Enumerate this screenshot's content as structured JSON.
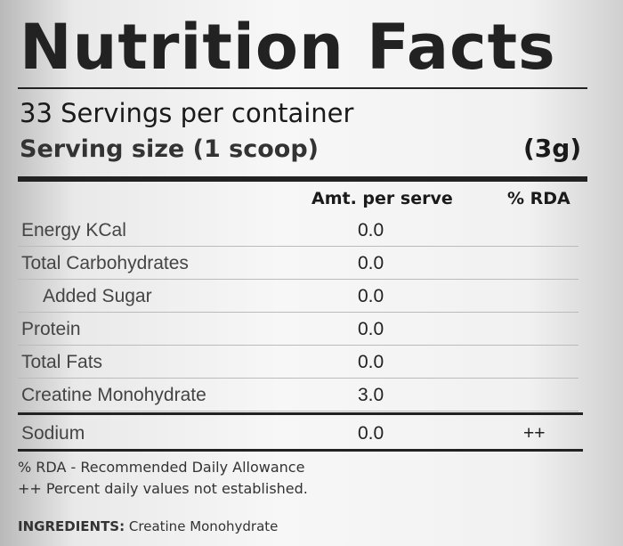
{
  "header": {
    "title": "Nutrition Facts",
    "servings": "33 Servings per container",
    "serving_size": "Serving size (1 scoop)",
    "serving_weight": "(3g)"
  },
  "table": {
    "columns": [
      "Amt. per serve",
      "% RDA"
    ],
    "rows": [
      {
        "name": "Energy KCal",
        "amount": "0.0"
      },
      {
        "name": "Total Carbohydrates",
        "amount": "0.0"
      },
      {
        "name": "Added Sugar",
        "amount": "0.0",
        "indent": true
      },
      {
        "name": "Protein",
        "amount": "0.0"
      },
      {
        "name": "Total Fats",
        "amount": "0.0"
      },
      {
        "name": "Creatine Monohydrate",
        "amount": "3.0"
      },
      {
        "name": "Sodium",
        "amount": "0.0",
        "rda": "++",
        "separated": true
      }
    ]
  },
  "footnotes": [
    "% RDA - Recommended Daily Allowance",
    "++ Percent daily values not established."
  ],
  "ingredients": {
    "label": "INGREDIENTS:",
    "text": "Creatine Monohydrate"
  }
}
